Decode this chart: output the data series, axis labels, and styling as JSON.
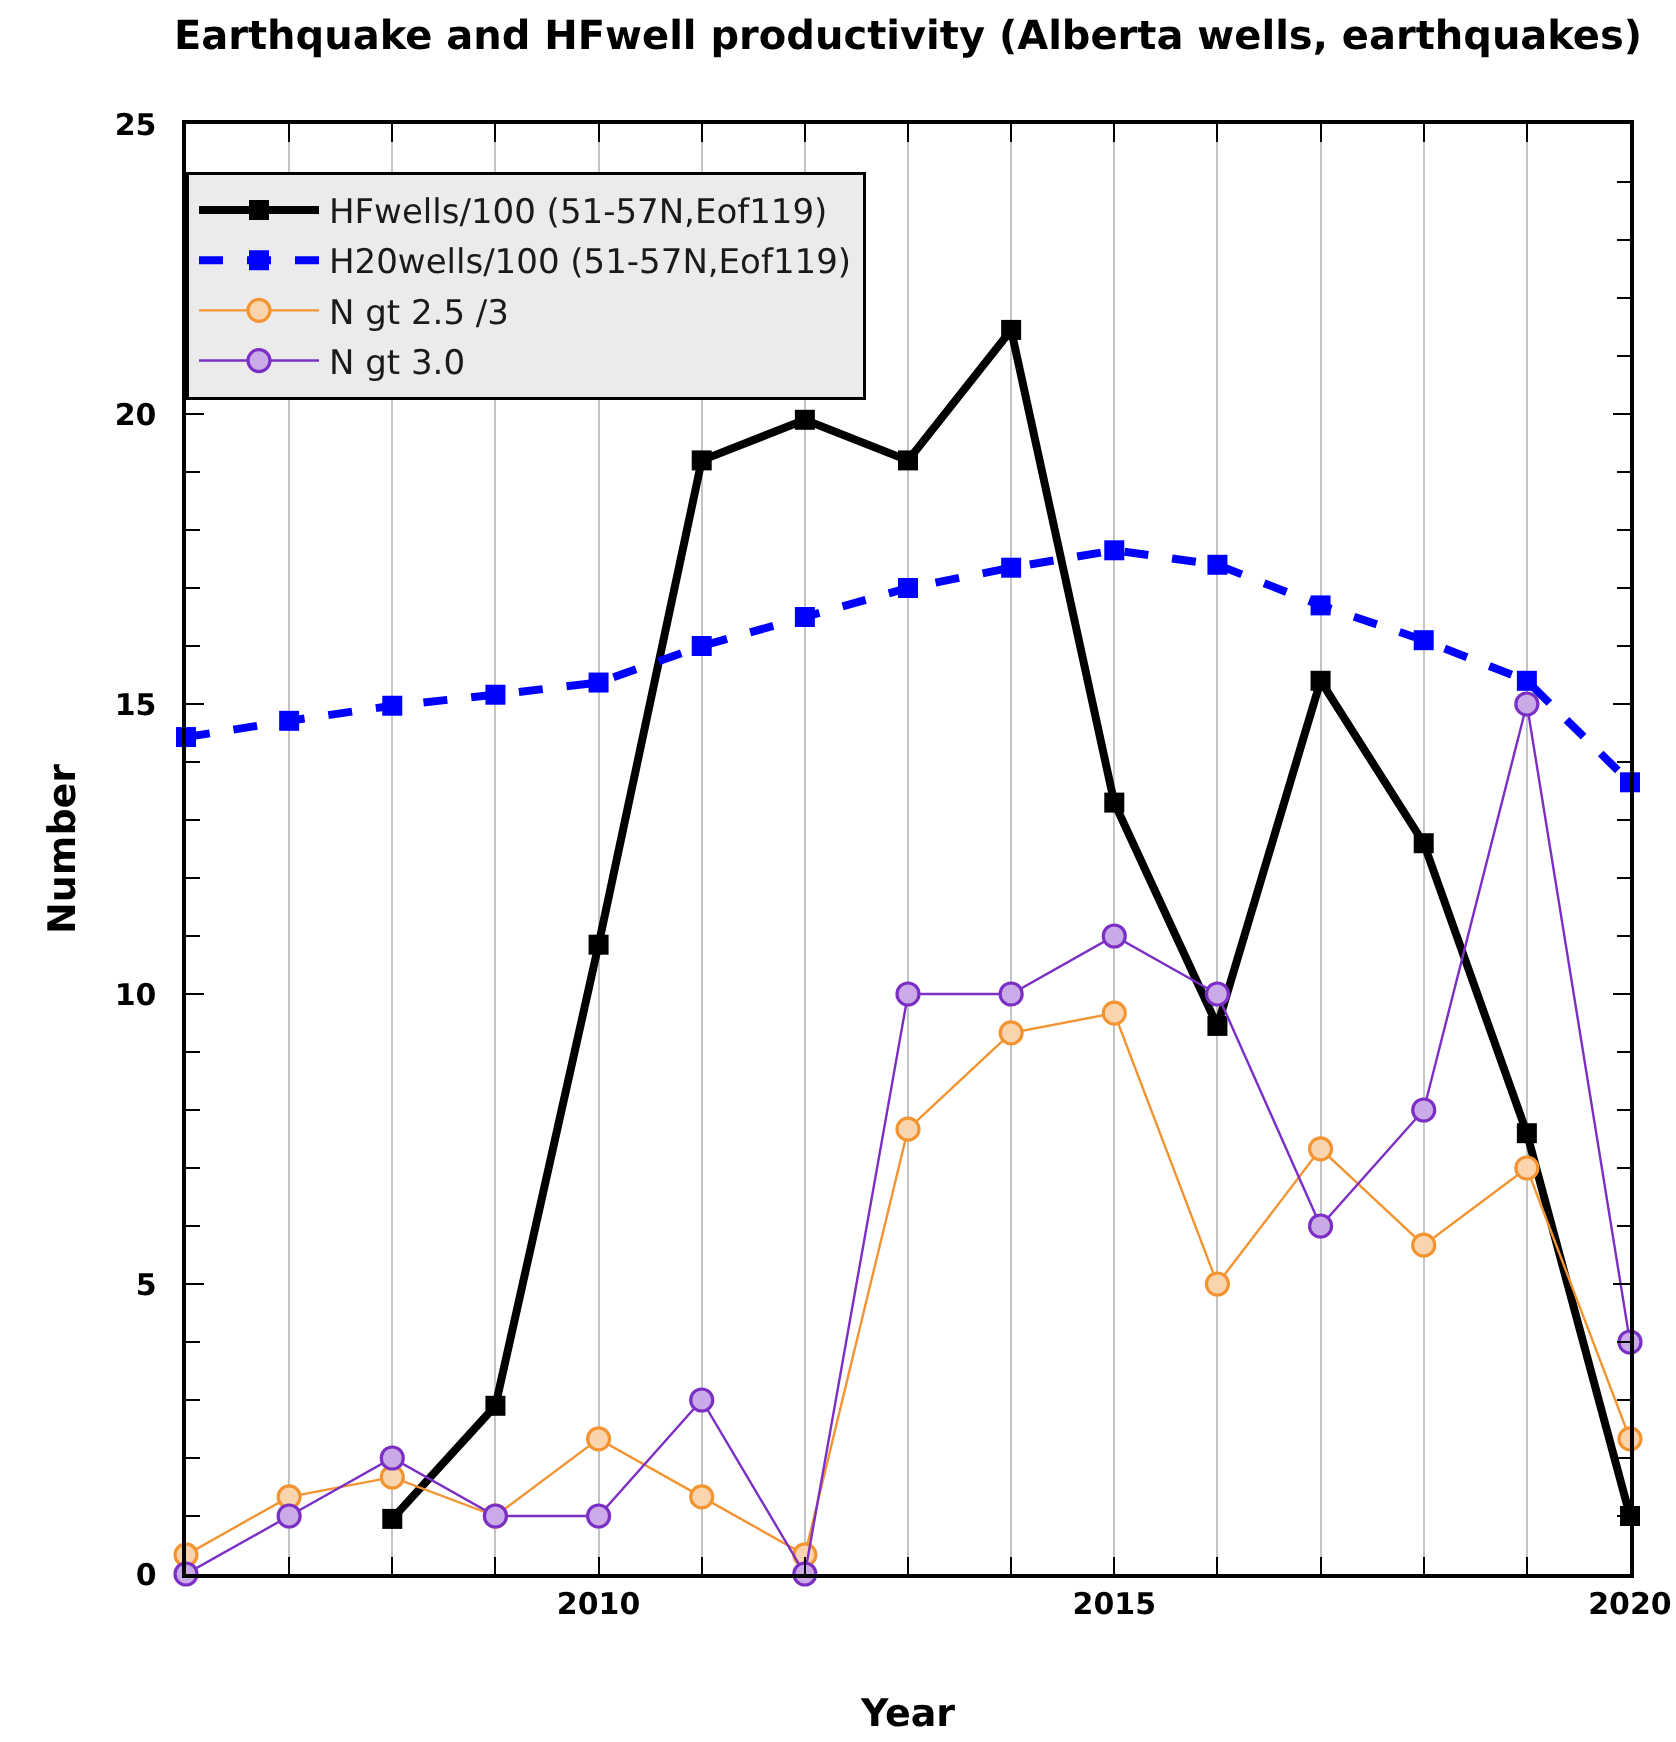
{
  "chart_data": {
    "type": "line",
    "title": "Earthquake and HFwell productivity (Alberta wells, earthquakes)",
    "xlabel": "Year",
    "ylabel": "Number",
    "x": [
      2006,
      2007,
      2008,
      2009,
      2010,
      2011,
      2012,
      2013,
      2014,
      2015,
      2016,
      2017,
      2018,
      2019,
      2020
    ],
    "xlim": [
      2006,
      2020
    ],
    "xticks": [
      {
        "value": 2006,
        "label": null
      },
      {
        "value": 2007,
        "label": null
      },
      {
        "value": 2008,
        "label": null
      },
      {
        "value": 2009,
        "label": null
      },
      2010,
      {
        "value": 2011,
        "label": null
      },
      {
        "value": 2012,
        "label": null
      },
      {
        "value": 2013,
        "label": null
      },
      {
        "value": 2014,
        "label": null
      },
      2015,
      {
        "value": 2016,
        "label": null
      },
      {
        "value": 2017,
        "label": null
      },
      {
        "value": 2018,
        "label": null
      },
      {
        "value": 2019,
        "label": null
      },
      2020
    ],
    "ylim": [
      0,
      25
    ],
    "yticks": [
      0,
      {
        "value": 1,
        "label": null
      },
      {
        "value": 2,
        "label": null
      },
      {
        "value": 3,
        "label": null
      },
      {
        "value": 4,
        "label": null
      },
      5,
      {
        "value": 6,
        "label": null
      },
      {
        "value": 7,
        "label": null
      },
      {
        "value": 8,
        "label": null
      },
      {
        "value": 9,
        "label": null
      },
      10,
      {
        "value": 11,
        "label": null
      },
      {
        "value": 12,
        "label": null
      },
      {
        "value": 13,
        "label": null
      },
      {
        "value": 14,
        "label": null
      },
      15,
      {
        "value": 16,
        "label": null
      },
      {
        "value": 17,
        "label": null
      },
      {
        "value": 18,
        "label": null
      },
      {
        "value": 19,
        "label": null
      },
      20,
      {
        "value": 21,
        "label": null
      },
      {
        "value": 22,
        "label": null
      },
      {
        "value": 23,
        "label": null
      },
      {
        "value": 24,
        "label": null
      },
      25
    ],
    "grid": "x",
    "legend": "top left",
    "series": [
      {
        "name": "HFwells/100 (51-57N,Eof119)",
        "color": "#000000",
        "marker": "square",
        "line_style": "solid",
        "values": [
          null,
          null,
          0.95,
          2.9,
          10.85,
          19.2,
          19.9,
          19.2,
          21.45,
          13.3,
          9.45,
          15.4,
          12.6,
          7.6,
          1.0
        ]
      },
      {
        "name": "H20wells/100 (51-57N,Eof119)",
        "color": "#0000ff",
        "marker": "square",
        "line_style": "dashed",
        "values": [
          14.43,
          14.71,
          14.97,
          15.16,
          15.37,
          16.0,
          16.5,
          17.0,
          17.35,
          17.65,
          17.4,
          16.7,
          16.1,
          15.4,
          13.65
        ]
      },
      {
        "name": "N gt 2.5 /3",
        "color": "#f39433",
        "marker": "circle",
        "line_style": "solid",
        "values": [
          0.33,
          1.33,
          1.67,
          1.0,
          2.33,
          1.33,
          0.33,
          7.67,
          9.33,
          9.67,
          5.0,
          7.33,
          5.67,
          7.0,
          2.33
        ]
      },
      {
        "name": "N gt 3.0",
        "color": "#7b2fc4",
        "marker": "circle",
        "line_style": "solid",
        "values": [
          0,
          1,
          2,
          1,
          1,
          3,
          0,
          10,
          10,
          11,
          10,
          6,
          8,
          15,
          4
        ]
      }
    ]
  }
}
